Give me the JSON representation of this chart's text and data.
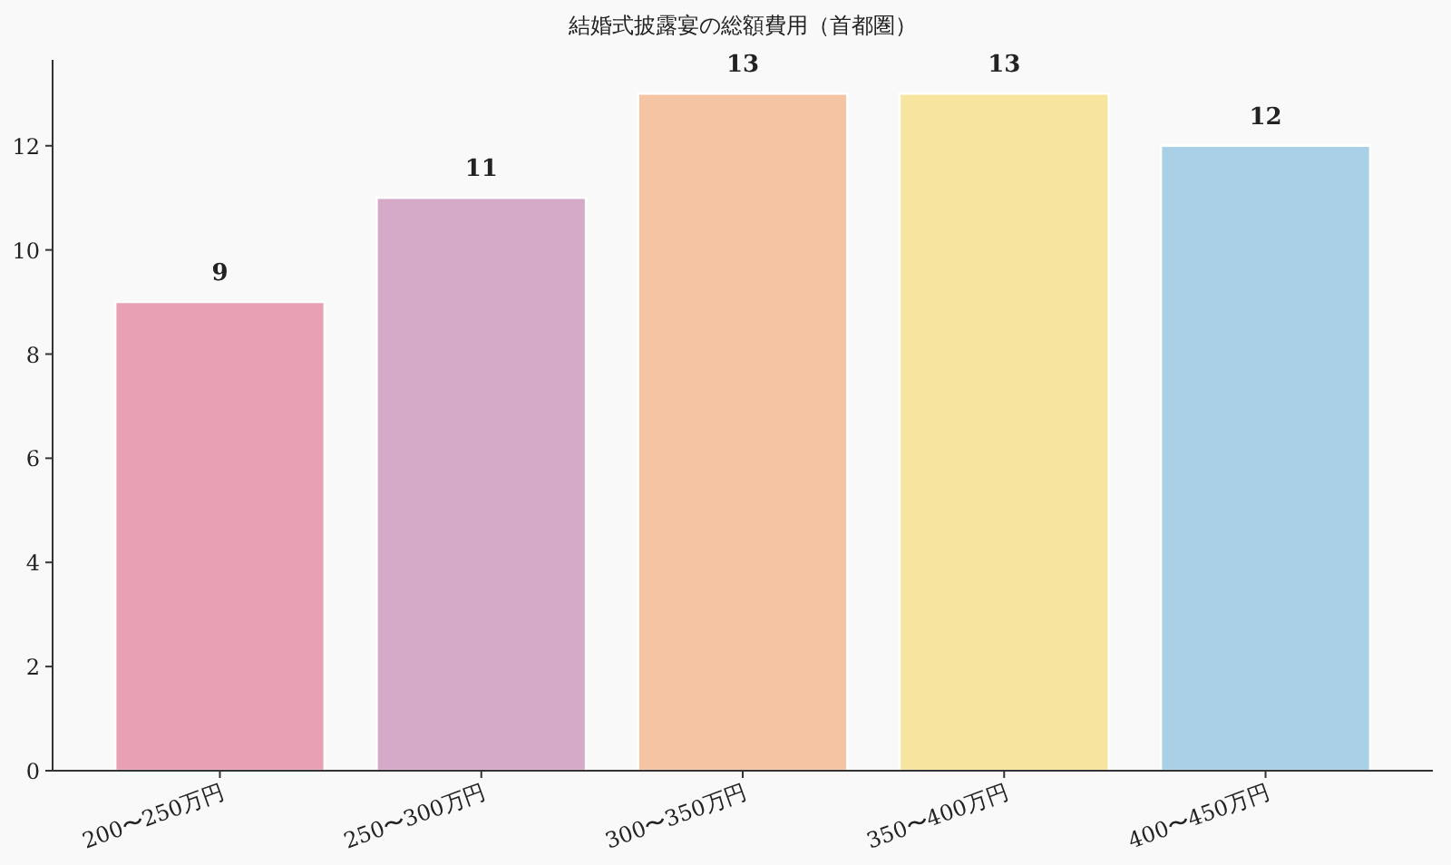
{
  "chart_data": {
    "type": "bar",
    "title": "結婚式披露宴の総額費用（首都圏）",
    "categories": [
      "200〜250万円",
      "250〜300万円",
      "300〜350万円",
      "350〜400万円",
      "400〜450万円"
    ],
    "values": [
      9,
      11,
      13,
      13,
      12
    ],
    "colors": [
      "#e8a0b4",
      "#d5a9c8",
      "#f5c4a3",
      "#f7e49f",
      "#a9d0e6"
    ],
    "ylim": [
      0,
      13.65
    ],
    "yticks": [
      0,
      2,
      4,
      6,
      8,
      10,
      12
    ],
    "data_labels": true,
    "grid": false
  }
}
